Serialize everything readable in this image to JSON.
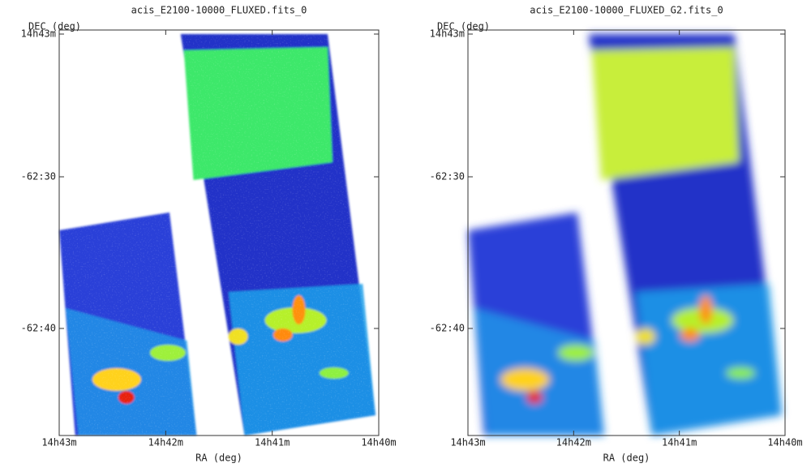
{
  "panels": [
    {
      "title": "acis_E2100-10000_FLUXED.fits_0",
      "y_axis_label": "DEC (deg)",
      "x_axis_label": "RA (deg)",
      "y_ticks": [
        "14h43m",
        "-62:30",
        "-62:40"
      ],
      "x_ticks": [
        "14h43m",
        "14h42m",
        "14h41m",
        "14h40m"
      ]
    },
    {
      "title": "acis_E2100-10000_FLUXED_G2.fits_0",
      "y_axis_label": "DEC (deg)",
      "x_axis_label": "RA (deg)",
      "y_ticks": [
        "14h43m",
        "-62:30",
        "-62:40"
      ],
      "x_ticks": [
        "14h43m",
        "14h42m",
        "14h41m",
        "14h40m"
      ]
    }
  ]
}
